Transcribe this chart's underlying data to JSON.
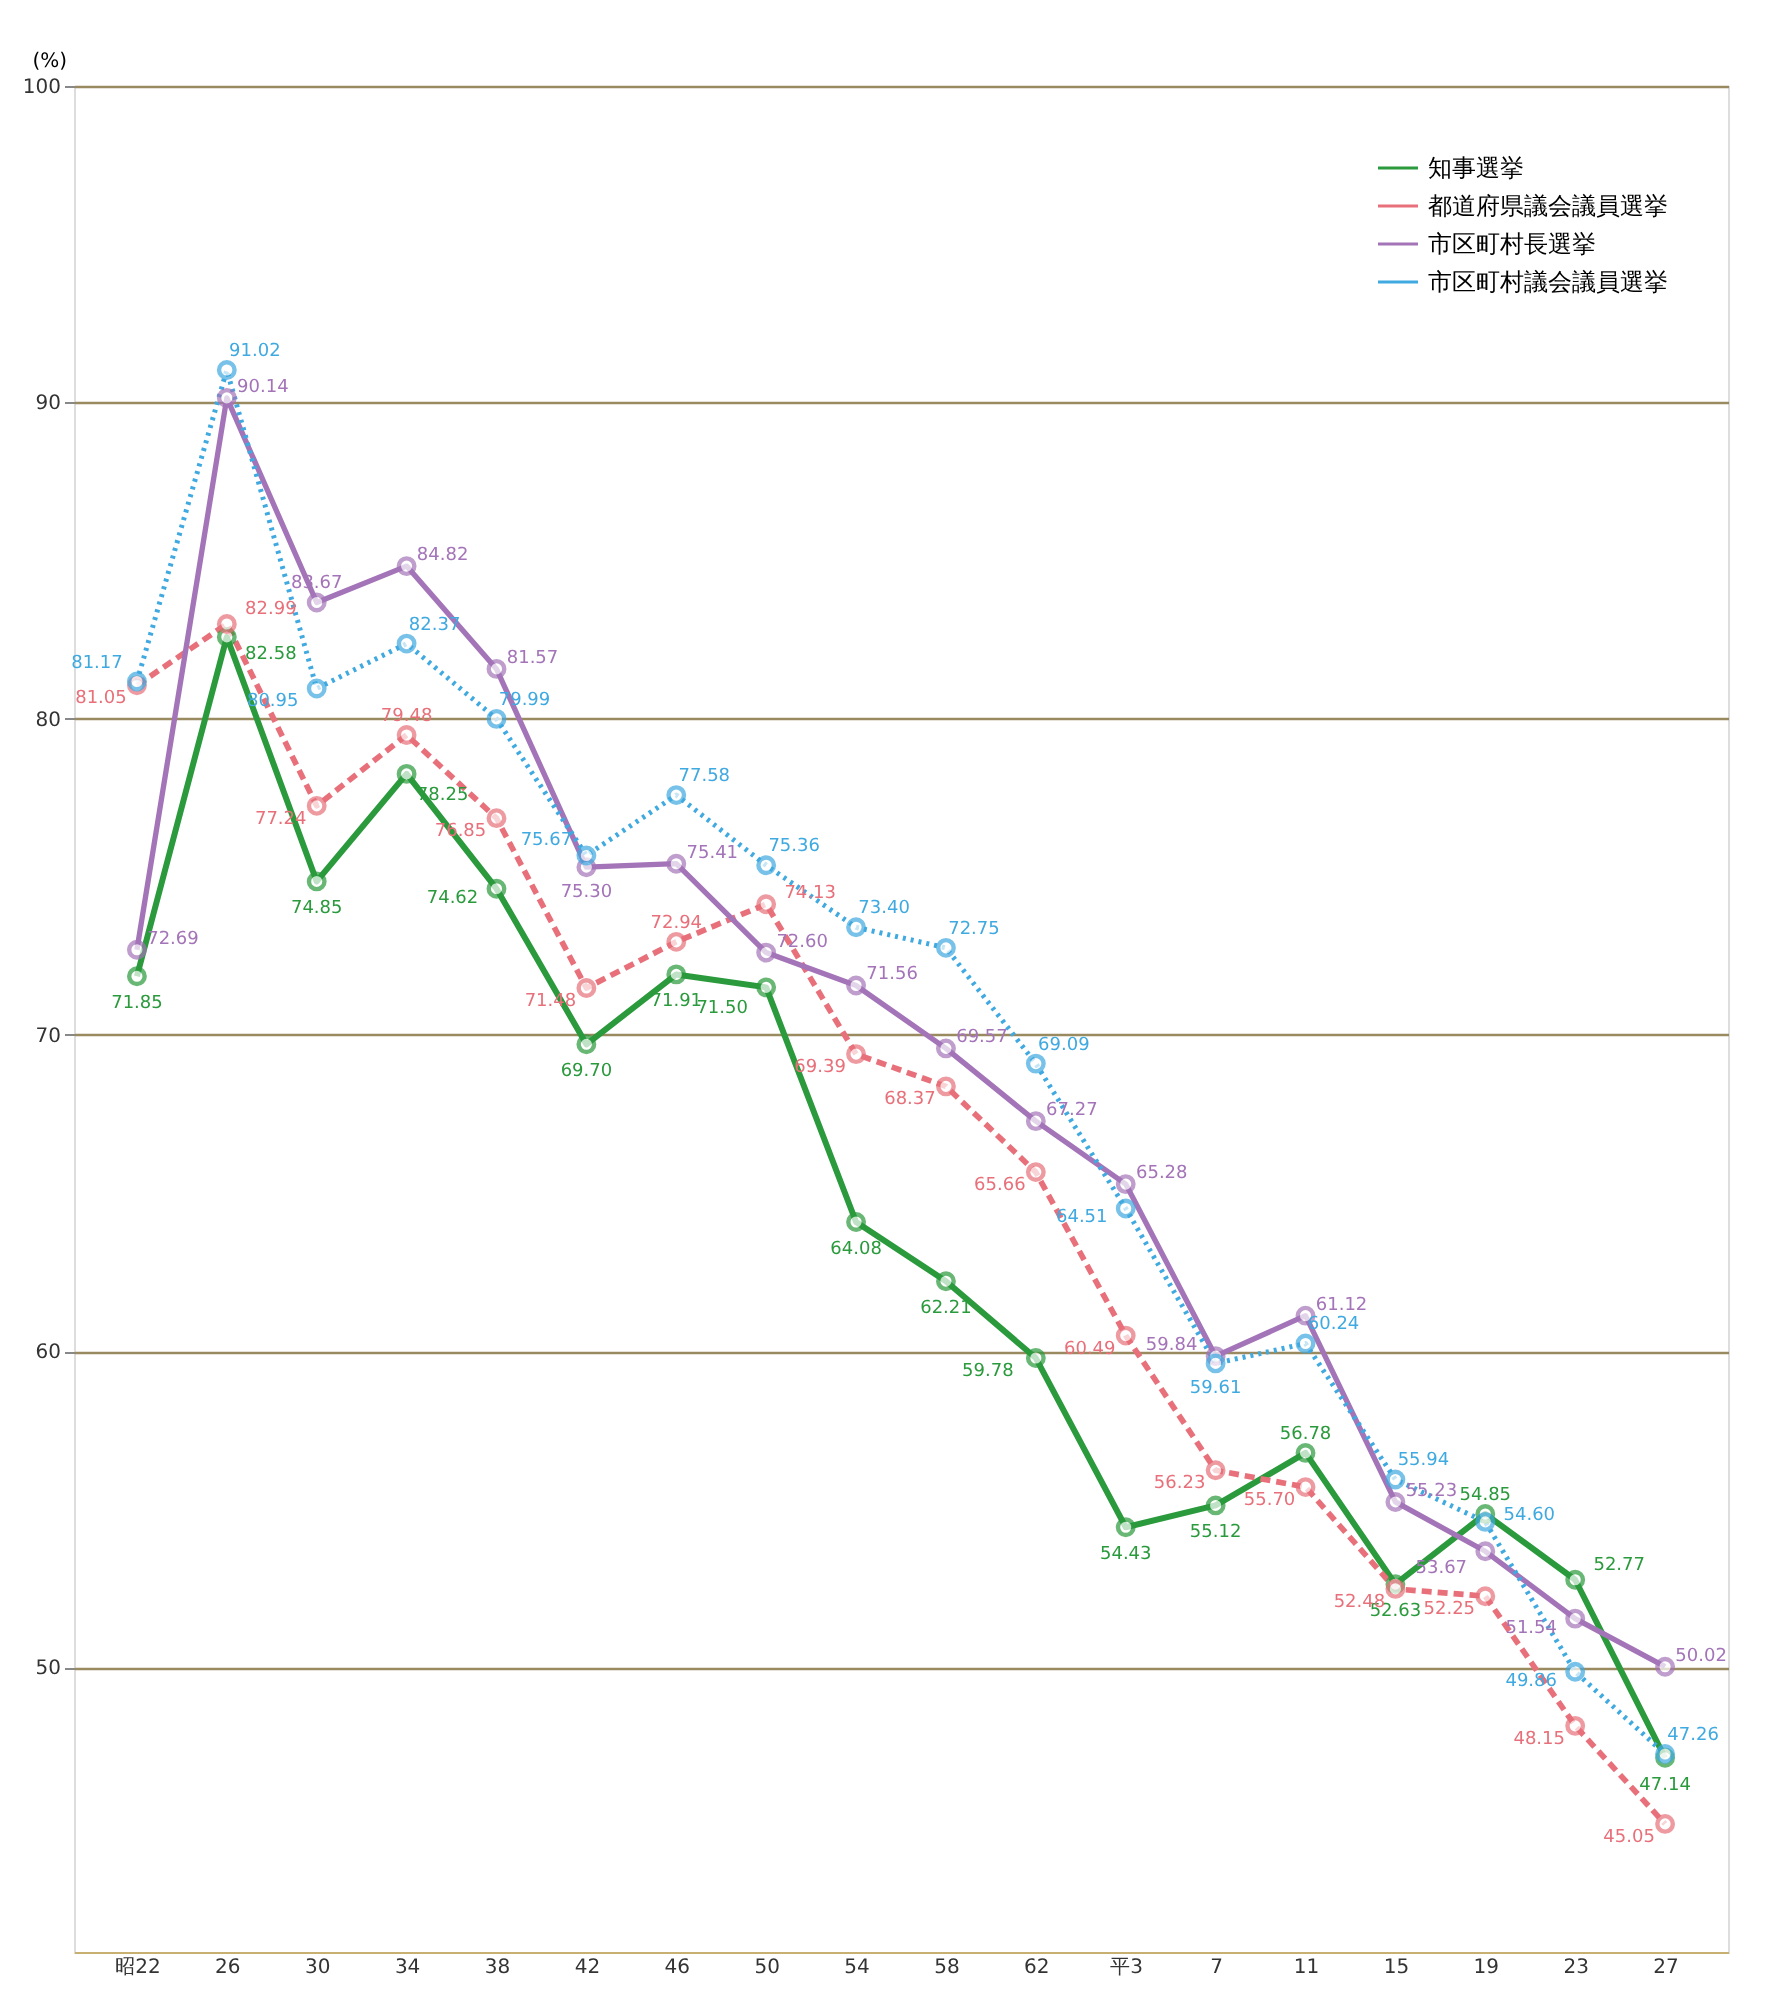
{
  "chart_data": {
    "type": "line",
    "ylabel": "(%)",
    "categories": [
      "昭22",
      "26",
      "30",
      "34",
      "38",
      "42",
      "46",
      "50",
      "54",
      "58",
      "62",
      "平3",
      "7",
      "11",
      "15",
      "19",
      "23",
      "27"
    ],
    "series": [
      {
        "name": "知事選挙",
        "color": "#2a9a3c",
        "line_style": "solid",
        "values": [
          71.85,
          82.58,
          74.85,
          78.25,
          74.62,
          69.7,
          71.91,
          71.5,
          64.08,
          62.21,
          59.78,
          54.43,
          55.12,
          56.78,
          52.63,
          54.85,
          52.77,
          47.14
        ],
        "value_labels": [
          "71.85",
          "82.58",
          "74.85",
          "78.25",
          "74.62",
          "69.70",
          "71.91",
          "71.50",
          "64.08",
          "62.21",
          "59.78",
          "54.43",
          "55.12",
          "56.78",
          "52.63",
          "54.85",
          "52.77",
          "47.14"
        ]
      },
      {
        "name": "都道府県議会議員選挙",
        "color": "#e8707a",
        "line_style": "dashed",
        "values": [
          81.05,
          82.99,
          77.24,
          79.48,
          76.85,
          71.48,
          72.94,
          74.13,
          69.39,
          68.37,
          65.66,
          60.49,
          56.23,
          55.7,
          52.48,
          52.25,
          48.15,
          45.05
        ],
        "value_labels": [
          "81.05",
          "82.99",
          "77.24",
          "79.48",
          "76.85",
          "71.48",
          "72.94",
          "74.13",
          "69.39",
          "68.37",
          "65.66",
          "60.49",
          "56.23",
          "55.70",
          "52.48",
          "52.25",
          "48.15",
          "45.05"
        ]
      },
      {
        "name": "市区町村長選挙",
        "color": "#a474b8",
        "line_style": "solid",
        "values": [
          72.69,
          90.14,
          83.67,
          84.82,
          81.57,
          75.3,
          75.41,
          72.6,
          71.56,
          69.57,
          67.27,
          65.28,
          59.84,
          61.12,
          55.23,
          53.67,
          51.54,
          50.02
        ],
        "value_labels": [
          "72.69",
          "90.14",
          "83.67",
          "84.82",
          "81.57",
          "75.30",
          "75.41",
          "72.60",
          "71.56",
          "69.57",
          "67.27",
          "65.28",
          "59.84",
          "61.12",
          "55.23",
          "53.67",
          "51.54",
          "50.02"
        ]
      },
      {
        "name": "市区町村議会議員選挙",
        "color": "#3fa9e0",
        "line_style": "dotted",
        "values": [
          81.17,
          91.02,
          80.95,
          82.37,
          79.99,
          75.67,
          77.58,
          75.36,
          73.4,
          72.75,
          69.09,
          64.51,
          59.61,
          60.24,
          55.94,
          54.6,
          49.86,
          47.26
        ],
        "value_labels": [
          "81.17",
          "91.02",
          "80.95",
          "82.37",
          "79.99",
          "75.67",
          "77.58",
          "75.36",
          "73.40",
          "72.75",
          "69.09",
          "64.51",
          "59.61",
          "60.24",
          "55.94",
          "54.60",
          "49.86",
          "47.26"
        ]
      }
    ],
    "ylim": [
      41,
      100
    ],
    "yticks": [
      50,
      60,
      70,
      80,
      90,
      100
    ],
    "grid": "y",
    "legend": "top right",
    "marker": "circle"
  }
}
